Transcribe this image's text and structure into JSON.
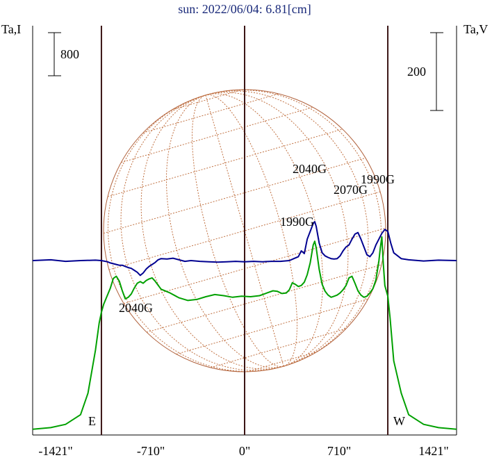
{
  "chart_data": {
    "type": "line",
    "title": "sun: 2022/06/04: 6.81[cm]",
    "left_axis_label": "Ta,I",
    "right_axis_label": "Ta,V",
    "scale_bars": [
      {
        "label": "800",
        "side": "left"
      },
      {
        "label": "200",
        "side": "right"
      }
    ],
    "x_ticks": [
      "-1421\"",
      "-710\"",
      "0\"",
      "710\"",
      "1421\""
    ],
    "xlim": [
      -1421,
      1421
    ],
    "limb_markers": [
      {
        "label": "E",
        "x": -960
      },
      {
        "label": "W",
        "x": 960
      }
    ],
    "center_marker_x": 0,
    "annotations": [
      {
        "text": "2040G",
        "x": -700,
        "series": "V"
      },
      {
        "text": "1990G",
        "x": 380,
        "series": "V"
      },
      {
        "text": "2040G",
        "x": 470,
        "series": "I"
      },
      {
        "text": "2070G",
        "x": 740,
        "series": "V"
      },
      {
        "text": "1990G",
        "x": 920,
        "series": "V"
      }
    ],
    "series": [
      {
        "name": "I",
        "color": "#00a000",
        "x": [
          -1421,
          -1300,
          -1200,
          -1100,
          -1050,
          -1000,
          -975,
          -960,
          -945,
          -930,
          -900,
          -880,
          -860,
          -840,
          -820,
          -800,
          -780,
          -760,
          -740,
          -720,
          -700,
          -680,
          -660,
          -640,
          -620,
          -600,
          -560,
          -500,
          -440,
          -380,
          -320,
          -260,
          -200,
          -140,
          -80,
          -20,
          40,
          100,
          150,
          190,
          220,
          250,
          280,
          300,
          320,
          340,
          360,
          380,
          400,
          420,
          440,
          460,
          470,
          480,
          500,
          520,
          540,
          560,
          580,
          600,
          620,
          640,
          660,
          680,
          700,
          720,
          740,
          760,
          780,
          800,
          820,
          840,
          860,
          880,
          900,
          910,
          920,
          930,
          940,
          950,
          960,
          975,
          1000,
          1050,
          1100,
          1200,
          1300,
          1421
        ],
        "values": [
          30,
          60,
          120,
          300,
          700,
          1500,
          2000,
          2200,
          2350,
          2450,
          2650,
          2830,
          2870,
          2780,
          2600,
          2450,
          2480,
          2540,
          2650,
          2740,
          2770,
          2740,
          2790,
          2820,
          2840,
          2780,
          2630,
          2560,
          2470,
          2420,
          2440,
          2490,
          2530,
          2510,
          2480,
          2500,
          2490,
          2510,
          2560,
          2600,
          2590,
          2550,
          2560,
          2620,
          2750,
          2720,
          2680,
          2700,
          2760,
          2900,
          3120,
          3450,
          3520,
          3400,
          3000,
          2720,
          2590,
          2520,
          2480,
          2500,
          2520,
          2560,
          2620,
          2700,
          2840,
          2870,
          2740,
          2600,
          2520,
          2480,
          2500,
          2560,
          2640,
          2800,
          3150,
          3400,
          3600,
          3100,
          2700,
          2600,
          2500,
          2100,
          1300,
          700,
          300,
          120,
          60,
          30
        ]
      },
      {
        "name": "V",
        "color": "#000090",
        "x": [
          -1421,
          -1300,
          -1200,
          -1100,
          -1000,
          -960,
          -920,
          -900,
          -880,
          -860,
          -840,
          -820,
          -800,
          -780,
          -760,
          -740,
          -720,
          -700,
          -680,
          -660,
          -640,
          -620,
          -600,
          -580,
          -560,
          -520,
          -480,
          -440,
          -400,
          -360,
          -300,
          -240,
          -180,
          -120,
          -60,
          0,
          60,
          120,
          180,
          240,
          300,
          330,
          360,
          380,
          400,
          420,
          440,
          460,
          470,
          480,
          500,
          520,
          540,
          560,
          580,
          600,
          620,
          640,
          660,
          680,
          700,
          720,
          740,
          760,
          780,
          800,
          820,
          840,
          860,
          880,
          900,
          920,
          940,
          960,
          980,
          1000,
          1050,
          1100,
          1200,
          1300,
          1421
        ],
        "values": [
          0,
          2,
          -2,
          0,
          1,
          0,
          -3,
          -6,
          -8,
          -10,
          -12,
          -12,
          -15,
          -18,
          -20,
          -25,
          -30,
          -38,
          -32,
          -22,
          -15,
          -10,
          -5,
          2,
          5,
          4,
          6,
          2,
          -2,
          0,
          -2,
          -3,
          -4,
          -3,
          -2,
          -3,
          -2,
          -3,
          -2,
          -2,
          0,
          5,
          10,
          25,
          18,
          55,
          75,
          95,
          100,
          88,
          45,
          20,
          12,
          8,
          5,
          4,
          5,
          12,
          25,
          35,
          40,
          55,
          68,
          72,
          55,
          35,
          15,
          10,
          20,
          40,
          55,
          70,
          80,
          75,
          45,
          20,
          5,
          2,
          -1,
          1,
          0
        ]
      }
    ]
  }
}
